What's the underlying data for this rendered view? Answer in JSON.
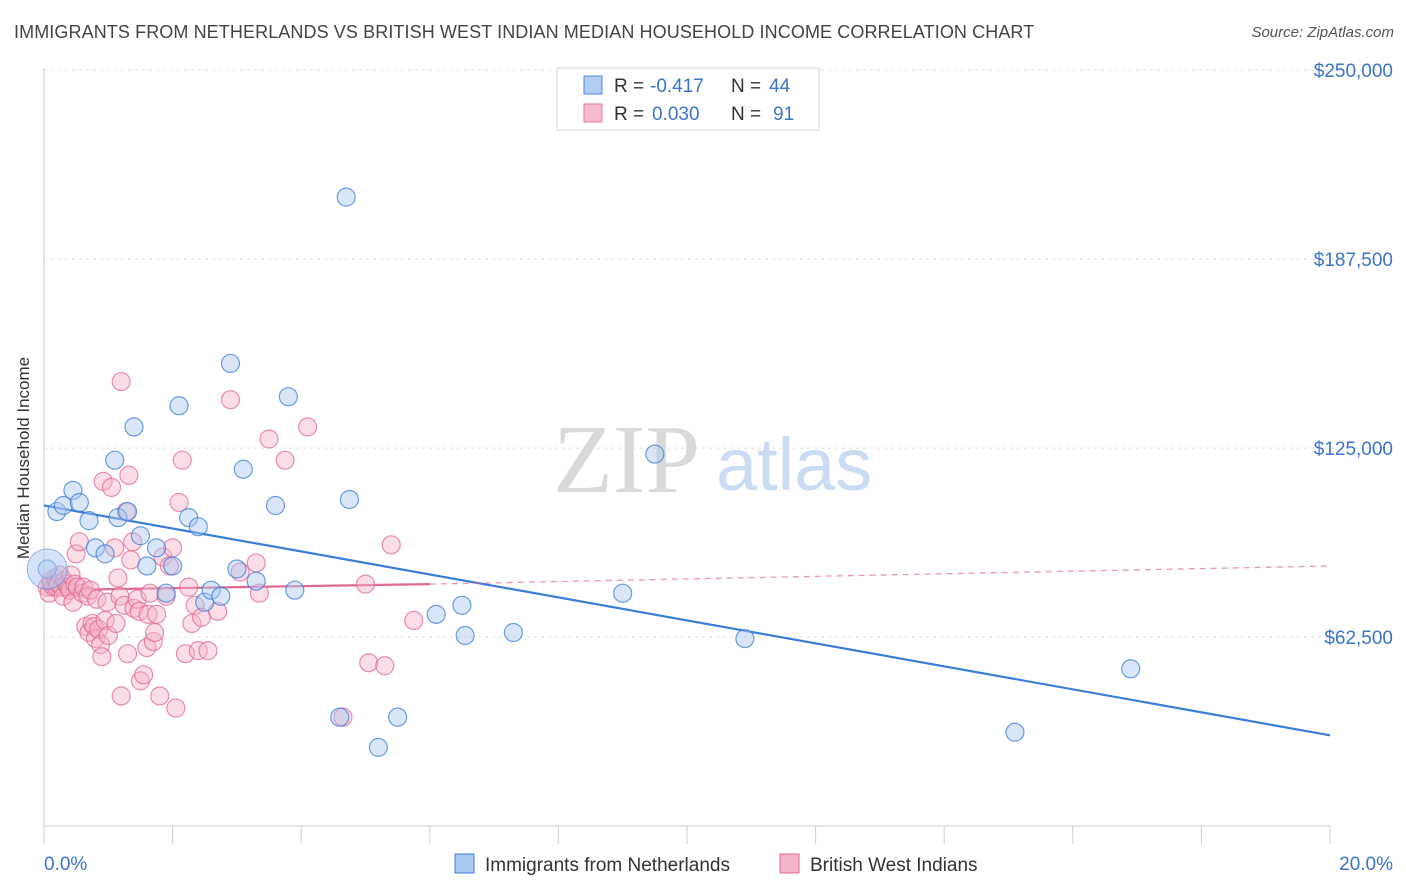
{
  "title": "IMMIGRANTS FROM NETHERLANDS VS BRITISH WEST INDIAN MEDIAN HOUSEHOLD INCOME CORRELATION CHART",
  "source": "Source: ZipAtlas.com",
  "watermark": {
    "zip": "ZIP",
    "atlas": "atlas"
  },
  "legend_top": [
    {
      "r_label": "R =",
      "r_value": "-0.417",
      "n_label": "N =",
      "n_value": "44"
    },
    {
      "r_label": "R =",
      "r_value": "0.030",
      "n_label": "N =",
      "n_value": "91"
    }
  ],
  "colors": {
    "blue": "#3b7dd8",
    "blue_fill": "#a9c8ef",
    "pink": "#e06a94",
    "pink_fill": "#f4b4c8",
    "axis_text": "#3b74c9"
  },
  "chart_data": {
    "type": "scatter",
    "title": "IMMIGRANTS FROM NETHERLANDS VS BRITISH WEST INDIAN MEDIAN HOUSEHOLD INCOME CORRELATION CHART",
    "xlabel": "",
    "ylabel": "Median Household Income",
    "xlim": [
      0,
      20
    ],
    "ylim": [
      0,
      256000
    ],
    "x_tick_labels": [
      "0.0%",
      "20.0%"
    ],
    "y_ticks": [
      62500,
      125000,
      187500,
      250000
    ],
    "y_tick_labels": [
      "$62,500",
      "$125,000",
      "$187,500",
      "$250,000"
    ],
    "grid": true,
    "legend_position": "bottom-center",
    "series": [
      {
        "name": "Immigrants from Netherlands",
        "color": "#3b7dd8",
        "r": -0.417,
        "n": 44,
        "trend": {
          "x": [
            0,
            20
          ],
          "y": [
            106000,
            30000
          ],
          "style": "solid"
        },
        "points": [
          [
            0.05,
            85000
          ],
          [
            0.2,
            104000
          ],
          [
            0.3,
            106000
          ],
          [
            0.45,
            111000
          ],
          [
            0.55,
            107000
          ],
          [
            0.7,
            101000
          ],
          [
            0.8,
            92000
          ],
          [
            0.95,
            90000
          ],
          [
            1.1,
            121000
          ],
          [
            1.15,
            102000
          ],
          [
            1.3,
            104000
          ],
          [
            1.4,
            132000
          ],
          [
            1.5,
            96000
          ],
          [
            1.6,
            86000
          ],
          [
            1.75,
            92000
          ],
          [
            1.9,
            77000
          ],
          [
            2.0,
            86000
          ],
          [
            2.1,
            139000
          ],
          [
            2.25,
            102000
          ],
          [
            2.4,
            99000
          ],
          [
            2.5,
            74000
          ],
          [
            2.6,
            78000
          ],
          [
            2.75,
            76000
          ],
          [
            2.9,
            153000
          ],
          [
            3.0,
            85000
          ],
          [
            3.1,
            118000
          ],
          [
            3.3,
            81000
          ],
          [
            3.6,
            106000
          ],
          [
            3.8,
            142000
          ],
          [
            3.9,
            78000
          ],
          [
            4.6,
            36000
          ],
          [
            4.7,
            208000
          ],
          [
            4.75,
            108000
          ],
          [
            5.2,
            26000
          ],
          [
            5.5,
            36000
          ],
          [
            6.1,
            70000
          ],
          [
            6.5,
            73000
          ],
          [
            6.55,
            63000
          ],
          [
            7.3,
            64000
          ],
          [
            9.0,
            77000
          ],
          [
            9.5,
            123000
          ],
          [
            10.9,
            62000
          ],
          [
            15.1,
            31000
          ],
          [
            16.9,
            52000
          ]
        ]
      },
      {
        "name": "British West Indians",
        "color": "#e06a94",
        "r": 0.03,
        "n": 91,
        "trend": {
          "x": [
            0,
            6.0
          ],
          "y": [
            78000,
            80000
          ],
          "style": "solid",
          "extended_to": [
            20,
            86000
          ],
          "extended_style": "dashed"
        },
        "points": [
          [
            0.05,
            79000
          ],
          [
            0.08,
            77000
          ],
          [
            0.1,
            81000
          ],
          [
            0.12,
            80000
          ],
          [
            0.15,
            79000
          ],
          [
            0.18,
            82000
          ],
          [
            0.2,
            79000
          ],
          [
            0.22,
            80000
          ],
          [
            0.25,
            83000
          ],
          [
            0.28,
            79000
          ],
          [
            0.3,
            76000
          ],
          [
            0.32,
            81000
          ],
          [
            0.35,
            80000
          ],
          [
            0.38,
            79000
          ],
          [
            0.4,
            78000
          ],
          [
            0.42,
            83000
          ],
          [
            0.45,
            74000
          ],
          [
            0.48,
            80000
          ],
          [
            0.5,
            90000
          ],
          [
            0.52,
            79000
          ],
          [
            0.55,
            94000
          ],
          [
            0.6,
            77000
          ],
          [
            0.62,
            79000
          ],
          [
            0.65,
            66000
          ],
          [
            0.68,
            76000
          ],
          [
            0.7,
            64000
          ],
          [
            0.72,
            78000
          ],
          [
            0.75,
            67000
          ],
          [
            0.78,
            66000
          ],
          [
            0.8,
            62000
          ],
          [
            0.82,
            75000
          ],
          [
            0.85,
            65000
          ],
          [
            0.88,
            60000
          ],
          [
            0.9,
            56000
          ],
          [
            0.92,
            114000
          ],
          [
            0.95,
            68000
          ],
          [
            0.98,
            74000
          ],
          [
            1.0,
            63000
          ],
          [
            1.05,
            112000
          ],
          [
            1.1,
            92000
          ],
          [
            1.12,
            67000
          ],
          [
            1.15,
            82000
          ],
          [
            1.18,
            76000
          ],
          [
            1.2,
            43000
          ],
          [
            1.25,
            73000
          ],
          [
            1.28,
            104000
          ],
          [
            1.3,
            57000
          ],
          [
            1.32,
            116000
          ],
          [
            1.35,
            88000
          ],
          [
            1.38,
            94000
          ],
          [
            1.4,
            72000
          ],
          [
            1.45,
            75000
          ],
          [
            1.48,
            71000
          ],
          [
            1.5,
            48000
          ],
          [
            1.55,
            50000
          ],
          [
            1.6,
            59000
          ],
          [
            1.62,
            70000
          ],
          [
            1.65,
            77000
          ],
          [
            1.7,
            61000
          ],
          [
            1.72,
            64000
          ],
          [
            1.75,
            70000
          ],
          [
            1.8,
            43000
          ],
          [
            1.85,
            89000
          ],
          [
            1.9,
            76000
          ],
          [
            1.95,
            86000
          ],
          [
            2.0,
            92000
          ],
          [
            2.05,
            39000
          ],
          [
            2.1,
            107000
          ],
          [
            2.15,
            121000
          ],
          [
            2.2,
            57000
          ],
          [
            2.25,
            79000
          ],
          [
            2.3,
            67000
          ],
          [
            2.35,
            73000
          ],
          [
            2.4,
            58000
          ],
          [
            2.45,
            69000
          ],
          [
            2.55,
            58000
          ],
          [
            2.7,
            71000
          ],
          [
            2.9,
            141000
          ],
          [
            3.05,
            84000
          ],
          [
            3.3,
            87000
          ],
          [
            3.35,
            77000
          ],
          [
            3.5,
            128000
          ],
          [
            3.75,
            121000
          ],
          [
            4.1,
            132000
          ],
          [
            4.65,
            36000
          ],
          [
            5.0,
            80000
          ],
          [
            5.05,
            54000
          ],
          [
            5.3,
            53000
          ],
          [
            5.4,
            93000
          ],
          [
            5.75,
            68000
          ],
          [
            1.2,
            147000
          ]
        ]
      }
    ]
  }
}
